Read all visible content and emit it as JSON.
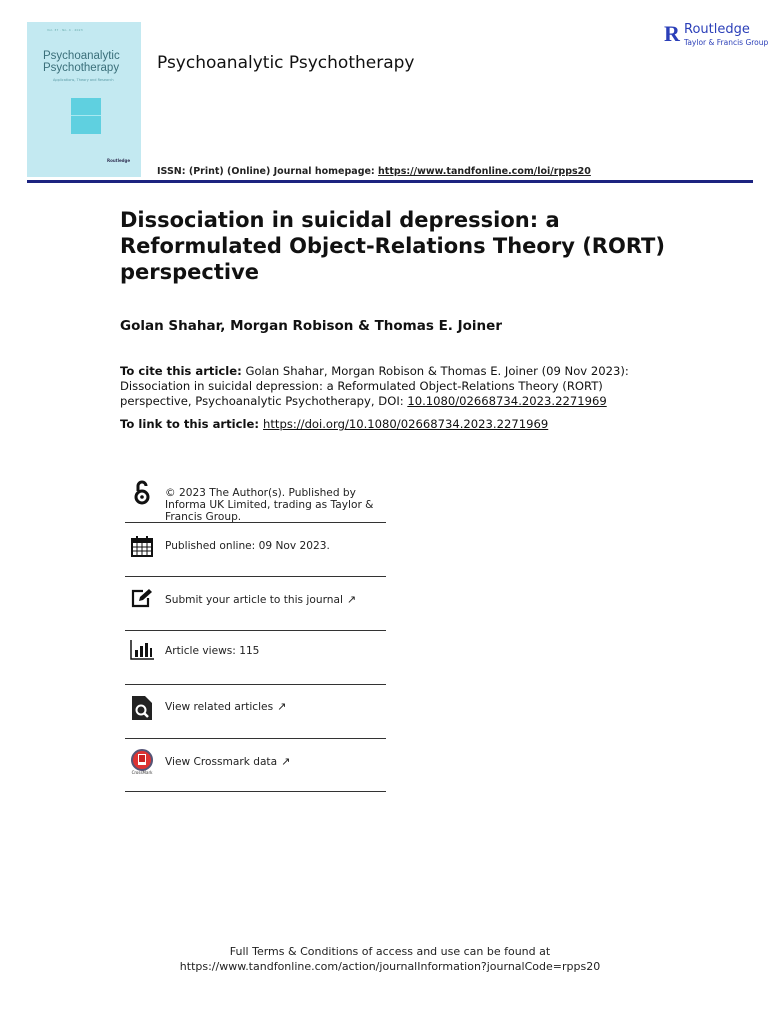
{
  "cover": {
    "journal_title": "Psychoanalytic Psychotherapy",
    "subtitle": "Applications, Theory and Research",
    "publisher": "Routledge"
  },
  "header": {
    "journal_name": "Psychoanalytic Psychotherapy",
    "issn_label": "ISSN: (Print) (Online) Journal homepage: ",
    "homepage_url": "https://www.tandfonline.com/loi/rpps20",
    "rule_color": "#1c2380"
  },
  "logo": {
    "name": "Routledge",
    "tagline": "Taylor & Francis Group",
    "color": "#2b3fb8"
  },
  "article": {
    "title": "Dissociation in suicidal depression: a Reformulated Object-Relations Theory (RORT) perspective",
    "authors": "Golan Shahar, Morgan Robison & Thomas E. Joiner",
    "cite_label": "To cite this article:",
    "cite_text": " Golan Shahar, Morgan Robison & Thomas E. Joiner (09 Nov 2023): Dissociation in suicidal depression: a Reformulated Object-Relations Theory (RORT) perspective, Psychoanalytic Psychotherapy, DOI: ",
    "doi": "10.1080/02668734.2023.2271969",
    "link_label": "To link to this article: ",
    "link_url": "https://doi.org/10.1080/02668734.2023.2271969"
  },
  "info": [
    {
      "icon": "open-access-icon",
      "text": "© 2023 The Author(s). Published by Informa UK Limited, trading as Taylor & Francis Group."
    },
    {
      "icon": "calendar-icon",
      "text": "Published online: 09 Nov 2023."
    },
    {
      "icon": "edit-icon",
      "text": "Submit your article to this journal",
      "external": true
    },
    {
      "icon": "bar-chart-icon",
      "text": "Article views: 115"
    },
    {
      "icon": "search-document-icon",
      "text": "View related articles",
      "external": true
    },
    {
      "icon": "crossmark-icon",
      "text": "View Crossmark data",
      "external": true
    }
  ],
  "footer": {
    "line1": "Full Terms & Conditions of access and use can be found at",
    "line2": "https://www.tandfonline.com/action/journalInformation?journalCode=rpps20"
  }
}
